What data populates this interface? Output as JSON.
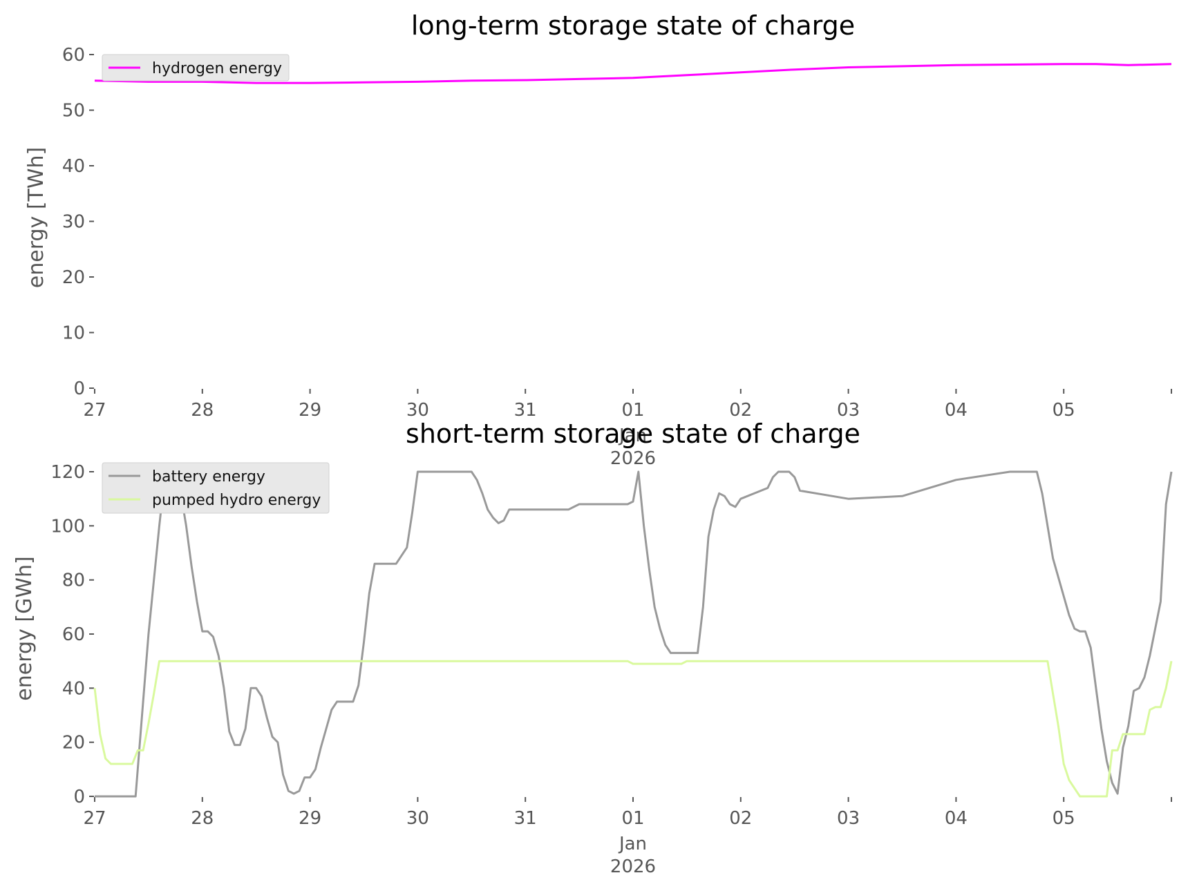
{
  "chart_data": [
    {
      "type": "line",
      "title": "long-term storage state of charge",
      "xlabel": "",
      "ylabel": "energy [TWh]",
      "ylim": [
        0,
        60
      ],
      "yticks": [
        "0",
        "10",
        "20",
        "30",
        "40",
        "50",
        "60"
      ],
      "xticks": [
        "27",
        "28",
        "29",
        "30",
        "31",
        "01",
        "02",
        "03",
        "04",
        "05"
      ],
      "xsub": [
        "Jan",
        "2026"
      ],
      "xrange_days": [
        0,
        10
      ],
      "legend": "top-left",
      "series": [
        {
          "name": "hydrogen energy",
          "color": "#ff00ff",
          "x": [
            0,
            0.5,
            1,
            1.5,
            2,
            2.5,
            3,
            3.5,
            4,
            4.5,
            5,
            5.5,
            6,
            6.5,
            7,
            7.5,
            8,
            8.5,
            9,
            9.3,
            9.6,
            10
          ],
          "y": [
            55.3,
            55.1,
            55.1,
            54.9,
            54.9,
            55.0,
            55.1,
            55.3,
            55.4,
            55.6,
            55.8,
            56.3,
            56.8,
            57.3,
            57.7,
            57.9,
            58.1,
            58.2,
            58.3,
            58.3,
            58.1,
            58.3
          ]
        }
      ]
    },
    {
      "type": "line",
      "title": "short-term storage state of charge",
      "xlabel": "",
      "ylabel": "energy [GWh]",
      "ylim": [
        0,
        120
      ],
      "yticks": [
        "0",
        "20",
        "40",
        "60",
        "80",
        "100",
        "120"
      ],
      "xticks": [
        "27",
        "28",
        "29",
        "30",
        "31",
        "01",
        "02",
        "03",
        "04",
        "05"
      ],
      "xsub": [
        "Jan",
        "2026"
      ],
      "xrange_days": [
        0,
        10
      ],
      "legend": "top-left",
      "series": [
        {
          "name": "battery energy",
          "color": "#999999",
          "x": [
            0,
            0.38,
            0.42,
            0.5,
            0.6,
            0.65,
            0.7,
            0.75,
            0.8,
            0.85,
            0.9,
            0.95,
            1.0,
            1.05,
            1.1,
            1.15,
            1.2,
            1.25,
            1.3,
            1.35,
            1.4,
            1.45,
            1.5,
            1.55,
            1.6,
            1.65,
            1.7,
            1.75,
            1.8,
            1.85,
            1.9,
            1.95,
            2.0,
            2.05,
            2.1,
            2.15,
            2.2,
            2.25,
            2.3,
            2.35,
            2.4,
            2.45,
            2.5,
            2.55,
            2.6,
            2.65,
            2.7,
            2.75,
            2.8,
            2.85,
            2.9,
            2.95,
            3.0,
            3.5,
            3.55,
            3.6,
            3.65,
            3.7,
            3.75,
            3.8,
            3.85,
            3.9,
            3.95,
            4.0,
            4.4,
            4.45,
            4.5,
            4.55,
            4.95,
            5.0,
            5.05,
            5.1,
            5.15,
            5.2,
            5.25,
            5.3,
            5.35,
            5.45,
            5.5,
            5.55,
            5.6,
            5.65,
            5.7,
            5.75,
            5.8,
            5.85,
            5.9,
            5.95,
            6.0,
            6.25,
            6.3,
            6.35,
            6.4,
            6.45,
            6.5,
            6.55,
            7.0,
            7.5,
            8.0,
            8.5,
            8.6,
            8.65,
            8.7,
            8.75,
            8.8,
            8.85,
            8.9,
            8.95,
            9.0,
            9.05,
            9.1,
            9.15,
            9.2,
            9.25,
            9.3,
            9.35,
            9.4,
            9.45,
            9.5,
            9.55,
            9.6,
            9.65,
            9.7,
            9.75,
            9.8,
            9.85,
            9.9,
            9.95,
            10.0
          ],
          "y": [
            0,
            0,
            20,
            60,
            100,
            118,
            120,
            118,
            112,
            100,
            85,
            72,
            61,
            61,
            59,
            52,
            40,
            24,
            19,
            19,
            25,
            40,
            40,
            37,
            29,
            22,
            20,
            8,
            2,
            1,
            2,
            7,
            7,
            10,
            18,
            25,
            32,
            35,
            35,
            35,
            35,
            41,
            57,
            75,
            86,
            86,
            86,
            86,
            86,
            89,
            92,
            105,
            120,
            120,
            117,
            112,
            106,
            103,
            101,
            102,
            106,
            106,
            106,
            106,
            106,
            107,
            108,
            108,
            108,
            109,
            120,
            100,
            84,
            70,
            62,
            56,
            53,
            53,
            53,
            53,
            53,
            70,
            96,
            106,
            112,
            111,
            108,
            107,
            110,
            114,
            118,
            120,
            120,
            120,
            118,
            113,
            110,
            111,
            117,
            120,
            120,
            120,
            120,
            120,
            112,
            100,
            88,
            81,
            74,
            67,
            62,
            61,
            61,
            55,
            40,
            25,
            13,
            5,
            1,
            18,
            26,
            39,
            40,
            44,
            52,
            62,
            72,
            108,
            120
          ]
        },
        {
          "name": "pumped hydro energy",
          "color": "#d9f99d",
          "x": [
            0,
            0.05,
            0.1,
            0.15,
            0.2,
            0.3,
            0.35,
            0.4,
            0.45,
            0.5,
            0.55,
            0.6,
            1.0,
            2.0,
            3.0,
            4.0,
            4.95,
            5.0,
            5.4,
            5.45,
            5.5,
            6.0,
            7.0,
            8.0,
            8.5,
            8.75,
            8.8,
            8.85,
            8.9,
            8.95,
            9.0,
            9.05,
            9.1,
            9.15,
            9.2,
            9.3,
            9.35,
            9.4,
            9.45,
            9.5,
            9.55,
            9.6,
            9.65,
            9.7,
            9.75,
            9.8,
            9.85,
            9.9,
            9.95,
            10.0
          ],
          "y": [
            40,
            23,
            14,
            12,
            12,
            12,
            12,
            17,
            17,
            27,
            38,
            50,
            50,
            50,
            50,
            50,
            50,
            49,
            49,
            49,
            50,
            50,
            50,
            50,
            50,
            50,
            50,
            50,
            38,
            26,
            12,
            6,
            3,
            0,
            0,
            0,
            0,
            0,
            17,
            17,
            23,
            23,
            23,
            23,
            23,
            32,
            33,
            33,
            40,
            50
          ]
        }
      ]
    }
  ]
}
